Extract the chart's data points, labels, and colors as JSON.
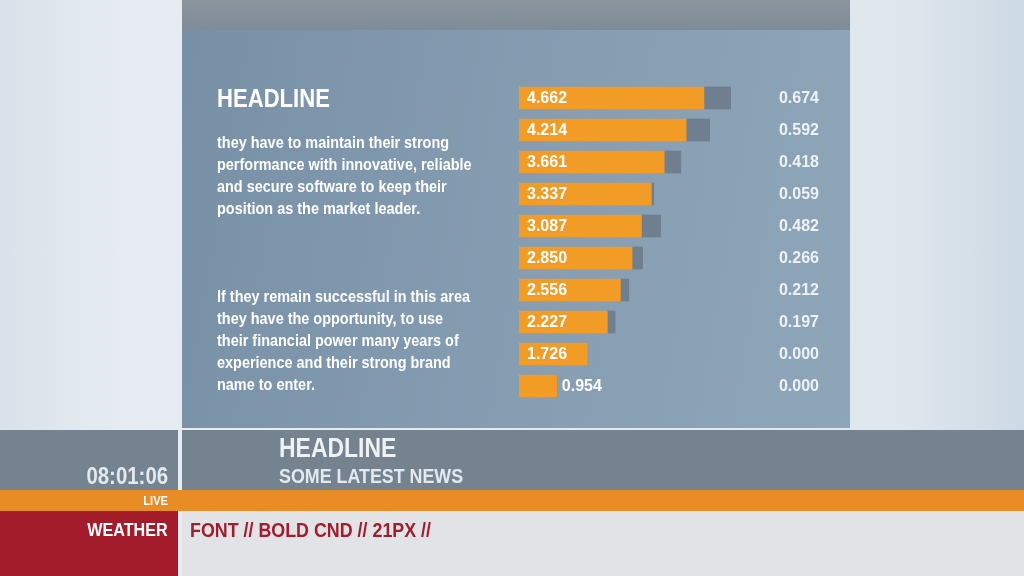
{
  "chart_data": {
    "type": "bar",
    "orientation": "horizontal",
    "stacked": true,
    "title": "HEADLINE",
    "categories": [
      null,
      null,
      null,
      null,
      null,
      null,
      null,
      null,
      null,
      null
    ],
    "series": [
      {
        "color": "#f29b26",
        "values": [
          4.662,
          4.214,
          3.661,
          3.337,
          3.087,
          2.85,
          2.556,
          2.227,
          1.726,
          0.954
        ],
        "value_labels": [
          "4.662",
          "4.214",
          "3.661",
          "3.337",
          "3.087",
          "2.850",
          "2.556",
          "2.227",
          "1.726",
          "0.954"
        ]
      },
      {
        "color": "#6f7f8f",
        "values": [
          0.674,
          0.592,
          0.418,
          0.059,
          0.482,
          0.266,
          0.212,
          0.197,
          0.0,
          0.0
        ],
        "value_labels": [
          "0.674",
          "0.592",
          "0.418",
          "0.059",
          "0.482",
          "0.266",
          "0.212",
          "0.197",
          "0.000",
          "0.000"
        ]
      }
    ],
    "tick_labels": false,
    "annotations": [
      "they have to maintain their strong performance with innovative, reliable and secure software to keep their position as the market leader.",
      "If they remain successful in this area they have the opportunity, to use their financial power many years of experience and their strong brand name to enter.",
      "08:01:06",
      "LIVE",
      "HEADLINE",
      "SOME LATEST NEWS",
      "WEATHER",
      "FONT // BOLD CND // 21PX //"
    ]
  }
}
